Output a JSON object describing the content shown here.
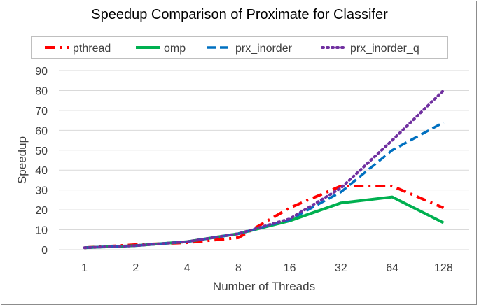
{
  "chart_data": {
    "type": "line",
    "title": "Speedup Comparison of Proximate for Classifer",
    "xlabel": "Number of Threads",
    "ylabel": "Speedup",
    "categories": [
      "1",
      "2",
      "4",
      "8",
      "16",
      "32",
      "64",
      "128"
    ],
    "ylim": [
      0,
      90
    ],
    "yticks": [
      0,
      10,
      20,
      30,
      40,
      50,
      60,
      70,
      80,
      90
    ],
    "grid": true,
    "legend_position": "top",
    "series": [
      {
        "name": "pthread",
        "values": [
          1,
          2.5,
          3.5,
          6,
          21,
          32,
          32,
          21
        ],
        "color": "#ff0000",
        "dash": "dash-dot"
      },
      {
        "name": "omp",
        "values": [
          1,
          2,
          4,
          8,
          14.5,
          23.5,
          26.5,
          13.5
        ],
        "color": "#00b050",
        "dash": "solid"
      },
      {
        "name": "prx_inorder",
        "values": [
          1,
          2,
          4,
          8,
          15,
          29,
          50,
          64
        ],
        "color": "#0070c0",
        "dash": "dash"
      },
      {
        "name": "prx_inorder_q",
        "values": [
          1,
          2,
          4,
          8,
          15.5,
          31,
          55,
          80
        ],
        "color": "#7030a0",
        "dash": "dot"
      }
    ]
  }
}
